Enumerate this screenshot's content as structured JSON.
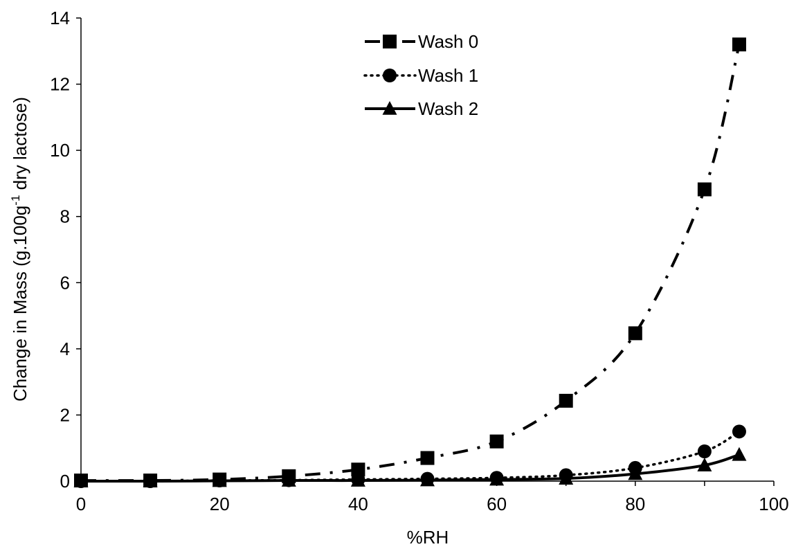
{
  "chart_data": {
    "type": "line",
    "title": "",
    "xlabel": "%RH",
    "ylabel_main": "Change in Mass (g.100g",
    "ylabel_sup": "-1",
    "ylabel_tail": " dry lactose)",
    "xlim": [
      0,
      100
    ],
    "ylim": [
      0,
      14
    ],
    "xticks": [
      0,
      20,
      40,
      60,
      80,
      100
    ],
    "yticks": [
      0,
      2,
      4,
      6,
      8,
      10,
      12,
      14
    ],
    "xtick_labels": [
      "0",
      "20",
      "40",
      "60",
      "80",
      "100"
    ],
    "ytick_labels": [
      "0",
      "2",
      "4",
      "6",
      "8",
      "10",
      "12",
      "14"
    ],
    "grid": false,
    "legend_placement": "top-center",
    "x": [
      0,
      10,
      20,
      30,
      40,
      50,
      60,
      70,
      80,
      90,
      95
    ],
    "series": [
      {
        "name": "Wash 0",
        "marker": "square",
        "line": "dash-dot",
        "color": "#000000",
        "values": [
          0.02,
          0.02,
          0.05,
          0.15,
          0.35,
          0.7,
          1.2,
          2.43,
          4.47,
          8.82,
          13.2
        ]
      },
      {
        "name": "Wash 1",
        "marker": "circle",
        "line": "dotted",
        "color": "#000000",
        "values": [
          0.0,
          0.0,
          0.02,
          0.03,
          0.05,
          0.07,
          0.1,
          0.18,
          0.4,
          0.9,
          1.5
        ]
      },
      {
        "name": "Wash 2",
        "marker": "triangle",
        "line": "solid",
        "color": "#000000",
        "values": [
          0.0,
          0.0,
          0.01,
          0.02,
          0.02,
          0.03,
          0.05,
          0.08,
          0.22,
          0.48,
          0.8
        ]
      }
    ]
  }
}
